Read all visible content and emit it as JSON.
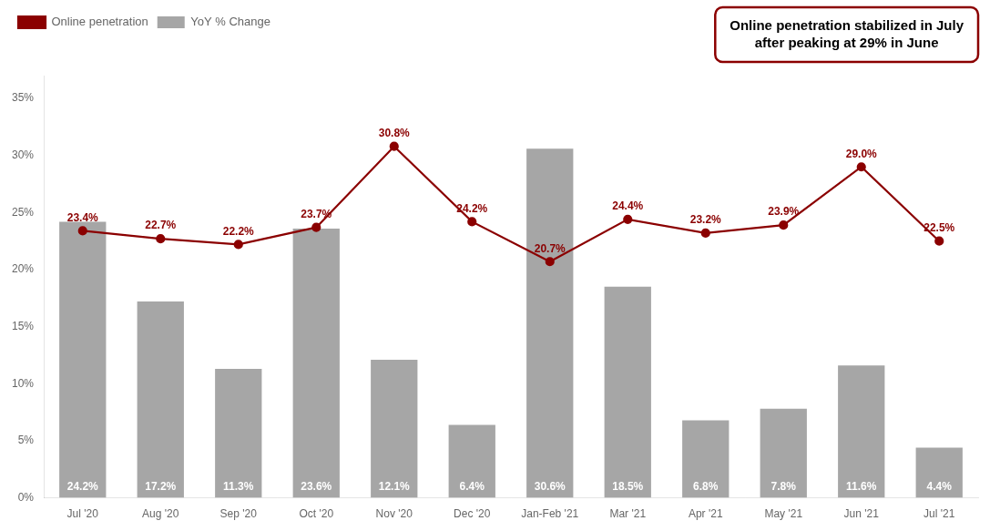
{
  "chart_data": {
    "type": "bar",
    "categories": [
      "Jul '20",
      "Aug '20",
      "Sep '20",
      "Oct '20",
      "Nov '20",
      "Dec '20",
      "Jan-Feb '21",
      "Mar '21",
      "Apr '21",
      "May '21",
      "Jun '21",
      "Jul '21"
    ],
    "series": [
      {
        "name": "YoY % Change",
        "type": "bar",
        "color": "#a6a6a6",
        "values": [
          24.2,
          17.2,
          11.3,
          23.6,
          12.1,
          6.4,
          30.6,
          18.5,
          6.8,
          7.8,
          11.6,
          4.4
        ],
        "value_labels": [
          "24.2%",
          "17.2%",
          "11.3%",
          "23.6%",
          "12.1%",
          "6.4%",
          "30.6%",
          "18.5%",
          "6.8%",
          "7.8%",
          "11.6%",
          "4.4%"
        ]
      },
      {
        "name": "Online penetration",
        "type": "line",
        "color": "#8b0000",
        "marker": "circle",
        "values": [
          23.4,
          22.7,
          22.2,
          23.7,
          30.8,
          24.2,
          20.7,
          24.4,
          23.2,
          23.9,
          29.0,
          22.5
        ],
        "value_labels": [
          "23.4%",
          "22.7%",
          "22.2%",
          "23.7%",
          "30.8%",
          "24.2%",
          "20.7%",
          "24.4%",
          "23.2%",
          "23.9%",
          "29.0%",
          "22.5%"
        ]
      }
    ],
    "ylim": [
      0,
      37
    ],
    "yticks": [
      {
        "value": 0,
        "label": "0%"
      },
      {
        "value": 5,
        "label": "5%"
      },
      {
        "value": 10,
        "label": "10%"
      },
      {
        "value": 15,
        "label": "15%"
      },
      {
        "value": 20,
        "label": "20%"
      },
      {
        "value": 25,
        "label": "25%"
      },
      {
        "value": 30,
        "label": "30%"
      },
      {
        "value": 35,
        "label": "35%"
      }
    ],
    "grid": false,
    "legend": "upper left",
    "data_labels": true,
    "annotation": "Online penetration stabilized in July\nafter peaking at 29% in June",
    "annotation_color": "#8b0000"
  }
}
